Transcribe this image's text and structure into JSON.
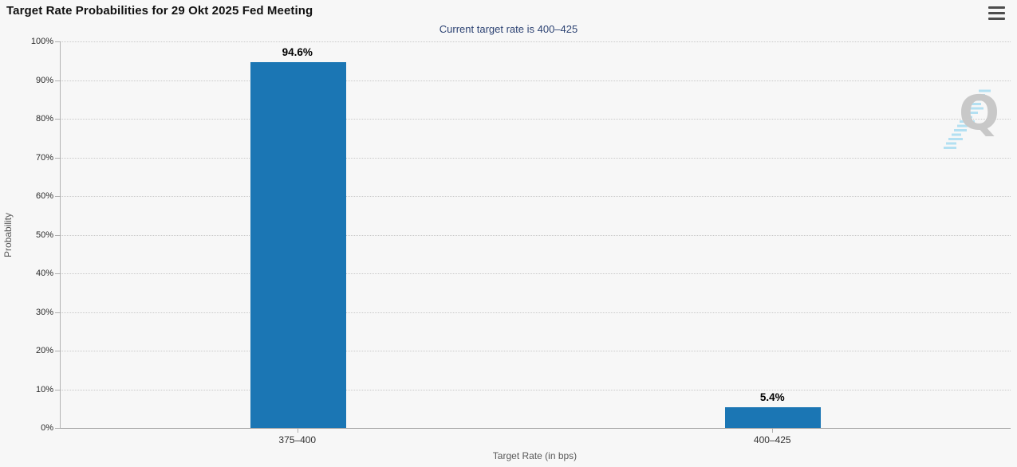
{
  "header": {
    "title": "Target Rate Probabilities for 29 Okt 2025 Fed Meeting",
    "menu_icon": "hamburger-icon"
  },
  "subtitle": "Current target rate is 400–425",
  "watermark": {
    "letter": "Q"
  },
  "colors": {
    "bar": "#1b76b4",
    "subtitle_text": "#2d4373",
    "background": "#f7f7f7",
    "gridline": "#c9c9c9",
    "watermark_gray": "#c8c8c8",
    "watermark_blue": "#a8dcf2"
  },
  "chart_data": {
    "type": "bar",
    "title": "Target Rate Probabilities for 29 Okt 2025 Fed Meeting",
    "subtitle": "Current target rate is 400–425",
    "categories": [
      "375–400",
      "400–425"
    ],
    "values": [
      94.6,
      5.4
    ],
    "value_labels": [
      "94.6%",
      "5.4%"
    ],
    "xlabel": "Target Rate (in bps)",
    "ylabel": "Probability",
    "ylim": [
      0,
      100
    ],
    "ytick_step": 10,
    "ytick_labels": [
      "0%",
      "10%",
      "20%",
      "30%",
      "40%",
      "50%",
      "60%",
      "70%",
      "80%",
      "90%",
      "100%"
    ],
    "grid": "horizontal-dotted",
    "legend": "none",
    "bar_color": "#1b76b4"
  }
}
